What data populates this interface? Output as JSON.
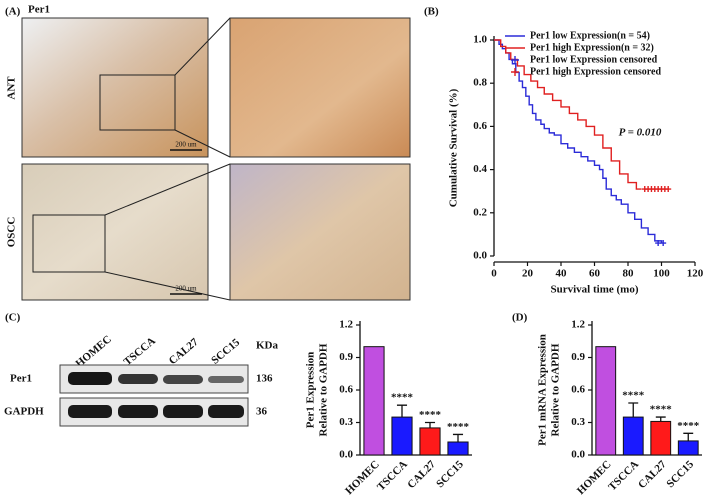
{
  "panel_labels": [
    "(A)",
    "(B)",
    "(C)",
    "(D)"
  ],
  "histology": {
    "stain": "Per1",
    "rows": [
      "ANT",
      "OSCC"
    ],
    "scale_bars": [
      "200 um",
      "200 um"
    ]
  },
  "blot": {
    "lanes": [
      "HOMEC",
      "TSCCA",
      "CAL27",
      "SCC15"
    ],
    "kda_header": "KDa",
    "rows": [
      {
        "label": "Per1",
        "kda": "136"
      },
      {
        "label": "GAPDH",
        "kda": "36"
      }
    ]
  },
  "chart_data": [
    {
      "type": "line",
      "step": true,
      "xlabel": "Survival time (mo)",
      "ylabel": [
        "Cumulative Survival (%)"
      ],
      "annotation": "P = 0.010",
      "xlim": [
        0,
        120
      ],
      "xticks": [
        0,
        20,
        40,
        60,
        80,
        100,
        120
      ],
      "ylim": [
        0,
        1
      ],
      "yticks": [
        {
          "value": 0,
          "label": "0.0"
        },
        0.2,
        0.4,
        0.6,
        0.8,
        {
          "value": 1,
          "label": "1.0"
        }
      ],
      "series": [
        {
          "name": "Per1 low Expression(n = 54)",
          "color": "#2b2bd8",
          "marker": "line",
          "x": [
            0,
            3,
            5,
            7,
            9,
            11,
            13,
            15,
            17,
            19,
            21,
            23,
            25,
            28,
            30,
            33,
            36,
            40,
            44,
            48,
            52,
            56,
            60,
            63,
            65,
            67,
            70,
            73,
            76,
            80,
            84,
            88,
            92,
            96,
            100
          ],
          "values": [
            1.0,
            0.98,
            0.96,
            0.94,
            0.91,
            0.89,
            0.85,
            0.81,
            0.78,
            0.74,
            0.7,
            0.66,
            0.63,
            0.61,
            0.59,
            0.57,
            0.56,
            0.52,
            0.5,
            0.48,
            0.46,
            0.44,
            0.42,
            0.4,
            0.36,
            0.31,
            0.28,
            0.26,
            0.24,
            0.2,
            0.17,
            0.13,
            0.1,
            0.07,
            0.06
          ]
        },
        {
          "name": "Per1 high Expression(n = 32)",
          "color": "#e02020",
          "marker": "line",
          "x": [
            0,
            4,
            7,
            10,
            14,
            18,
            22,
            26,
            30,
            35,
            40,
            45,
            50,
            55,
            60,
            65,
            70,
            75,
            80,
            85,
            88
          ],
          "values": [
            1.0,
            0.97,
            0.94,
            0.91,
            0.88,
            0.84,
            0.81,
            0.78,
            0.75,
            0.72,
            0.69,
            0.66,
            0.63,
            0.6,
            0.56,
            0.5,
            0.44,
            0.38,
            0.34,
            0.31,
            0.31
          ]
        },
        {
          "name": "Per1 low Expression censored",
          "color": "#2b2bd8",
          "marker": "+",
          "x": [
            98,
            101
          ],
          "values": [
            0.06,
            0.06
          ]
        },
        {
          "name": "Per1 high Expression censored",
          "color": "#e02020",
          "marker": "+",
          "x": [
            90,
            92,
            94,
            96,
            98,
            100,
            102,
            104
          ],
          "values": [
            0.31,
            0.31,
            0.31,
            0.31,
            0.31,
            0.31,
            0.31,
            0.31
          ]
        }
      ]
    },
    {
      "type": "bar",
      "ylabel": [
        "Per1 Expression",
        "Relative to GAPDH"
      ],
      "categories": [
        "HOMEC",
        "TSCCA",
        "CAL27",
        "SCC15"
      ],
      "values": [
        1.0,
        0.35,
        0.25,
        0.12
      ],
      "errors": [
        null,
        0.11,
        0.05,
        0.07
      ],
      "significance": [
        null,
        "****",
        "****",
        "****"
      ],
      "colors": [
        "#c04fe0",
        "#1a1aff",
        "#ff1a1a",
        "#1a1aff"
      ],
      "ylim": [
        0,
        1.2
      ],
      "yticks": [
        {
          "value": 0,
          "label": "0.0"
        },
        0.3,
        0.6,
        0.9,
        1.2
      ]
    },
    {
      "type": "bar",
      "ylabel": [
        "Per1 mRNA Expression",
        "Relative to GAPDH"
      ],
      "categories": [
        "HOMEC",
        "TSCCA",
        "CAL27",
        "SCC15"
      ],
      "values": [
        1.0,
        0.35,
        0.31,
        0.13
      ],
      "errors": [
        null,
        0.13,
        0.04,
        0.07
      ],
      "significance": [
        null,
        "****",
        "****",
        "****"
      ],
      "colors": [
        "#c04fe0",
        "#1a1aff",
        "#ff1a1a",
        "#1a1aff"
      ],
      "ylim": [
        0,
        1.2
      ],
      "yticks": [
        {
          "value": 0,
          "label": "0.0"
        },
        0.3,
        0.6,
        0.9,
        1.2
      ]
    }
  ]
}
